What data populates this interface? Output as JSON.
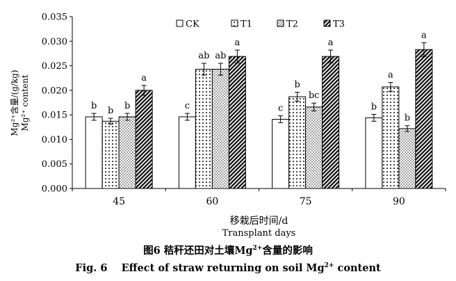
{
  "chart_data": {
    "type": "bar",
    "categories": [
      "45",
      "60",
      "75",
      "90"
    ],
    "series": [
      {
        "name": "CK",
        "values": [
          0.0146,
          0.0146,
          0.0141,
          0.0144
        ],
        "errors": [
          0.0007,
          0.0007,
          0.0007,
          0.0007
        ],
        "letters": [
          "b",
          "c",
          "c",
          "b"
        ]
      },
      {
        "name": "T1",
        "values": [
          0.0137,
          0.0243,
          0.0187,
          0.0207
        ],
        "errors": [
          0.0006,
          0.0012,
          0.0009,
          0.0009
        ],
        "letters": [
          "b",
          "ab",
          "b",
          "a"
        ]
      },
      {
        "name": "T2",
        "values": [
          0.0146,
          0.0243,
          0.0166,
          0.0122
        ],
        "errors": [
          0.0007,
          0.0012,
          0.0008,
          0.0006
        ],
        "letters": [
          "b",
          "ab",
          "bc",
          "b"
        ]
      },
      {
        "name": "T3",
        "values": [
          0.02,
          0.0269,
          0.0269,
          0.0283
        ],
        "errors": [
          0.001,
          0.0013,
          0.0013,
          0.0014
        ],
        "letters": [
          "a",
          "a",
          "a",
          "a"
        ]
      }
    ],
    "ylim": [
      0,
      0.035
    ],
    "yticks": [
      "0.000",
      "0.005",
      "0.010",
      "0.015",
      "0.020",
      "0.025",
      "0.030",
      "0.035"
    ],
    "ylabel_zh": "Mg²⁺含量/(g/kg)",
    "ylabel_en": "Mg²⁺ content",
    "xlabel_zh": "移栽后时间/d",
    "xlabel_en": "Transplant days",
    "legend_position": "top",
    "grid": false
  },
  "caption": {
    "zh_prefix": "图6   秸秆还田对土壤",
    "zh_mg": "Mg",
    "zh_sup": "2+",
    "zh_suffix": "含量的影响",
    "en_prefix": "Fig. 6    Effect of straw returning on soil ",
    "en_mg": "Mg",
    "en_sup": "2+",
    "en_suffix": " content"
  }
}
